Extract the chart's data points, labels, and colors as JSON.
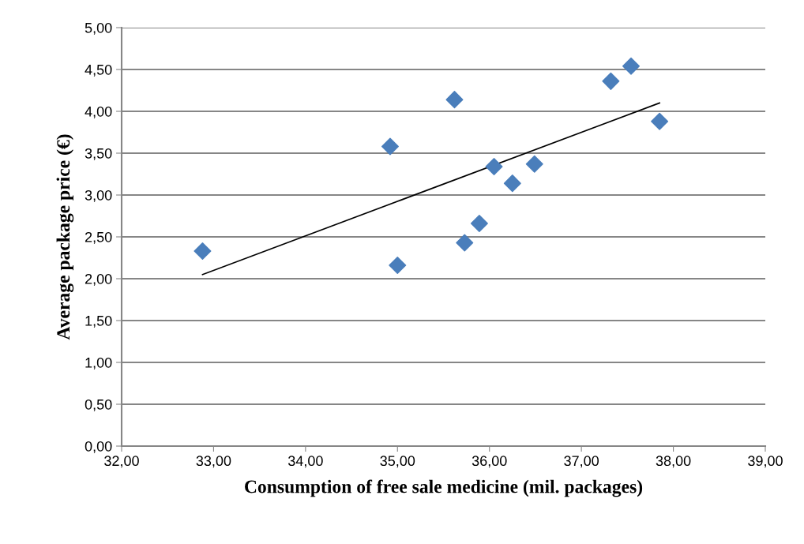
{
  "chart_data": {
    "type": "scatter",
    "xlabel": "Consumption of free sale medicine (mil. packages)",
    "ylabel": "Average package price (€)",
    "series": [
      {
        "color": "#4a7ebb",
        "marker": "diamond",
        "x": [
          32.88,
          34.92,
          35.0,
          35.62,
          35.73,
          35.89,
          36.05,
          36.25,
          36.49,
          37.32,
          37.54,
          37.85
        ],
        "values": [
          2.33,
          3.58,
          2.16,
          4.14,
          2.43,
          2.66,
          3.34,
          3.14,
          3.37,
          4.36,
          4.54,
          3.88
        ]
      },
      {
        "type": "line",
        "color": "#000000",
        "marker": "none",
        "x": [
          32.88,
          37.85
        ],
        "values": [
          2.05,
          4.1
        ]
      }
    ],
    "xlim": [
      32,
      39
    ],
    "ylim": [
      0,
      5
    ],
    "xticks": [
      {
        "value": 32,
        "label": "32,00"
      },
      {
        "value": 33,
        "label": "33,00"
      },
      {
        "value": 34,
        "label": "34,00"
      },
      {
        "value": 35,
        "label": "35,00"
      },
      {
        "value": 36,
        "label": "36,00"
      },
      {
        "value": 37,
        "label": "37,00"
      },
      {
        "value": 38,
        "label": "38,00"
      },
      {
        "value": 39,
        "label": "39,00"
      }
    ],
    "yticks": [
      {
        "value": 0,
        "label": "0,00"
      },
      {
        "value": 0.5,
        "label": "0,50"
      },
      {
        "value": 1,
        "label": "1,00"
      },
      {
        "value": 1.5,
        "label": "1,50"
      },
      {
        "value": 2,
        "label": "2,00"
      },
      {
        "value": 2.5,
        "label": "2,50"
      },
      {
        "value": 3,
        "label": "3,00"
      },
      {
        "value": 3.5,
        "label": "3,50"
      },
      {
        "value": 4,
        "label": "4,00"
      },
      {
        "value": 4.5,
        "label": "4,50"
      },
      {
        "value": 5,
        "label": "5,00"
      }
    ],
    "grid": "y",
    "legend": false
  }
}
